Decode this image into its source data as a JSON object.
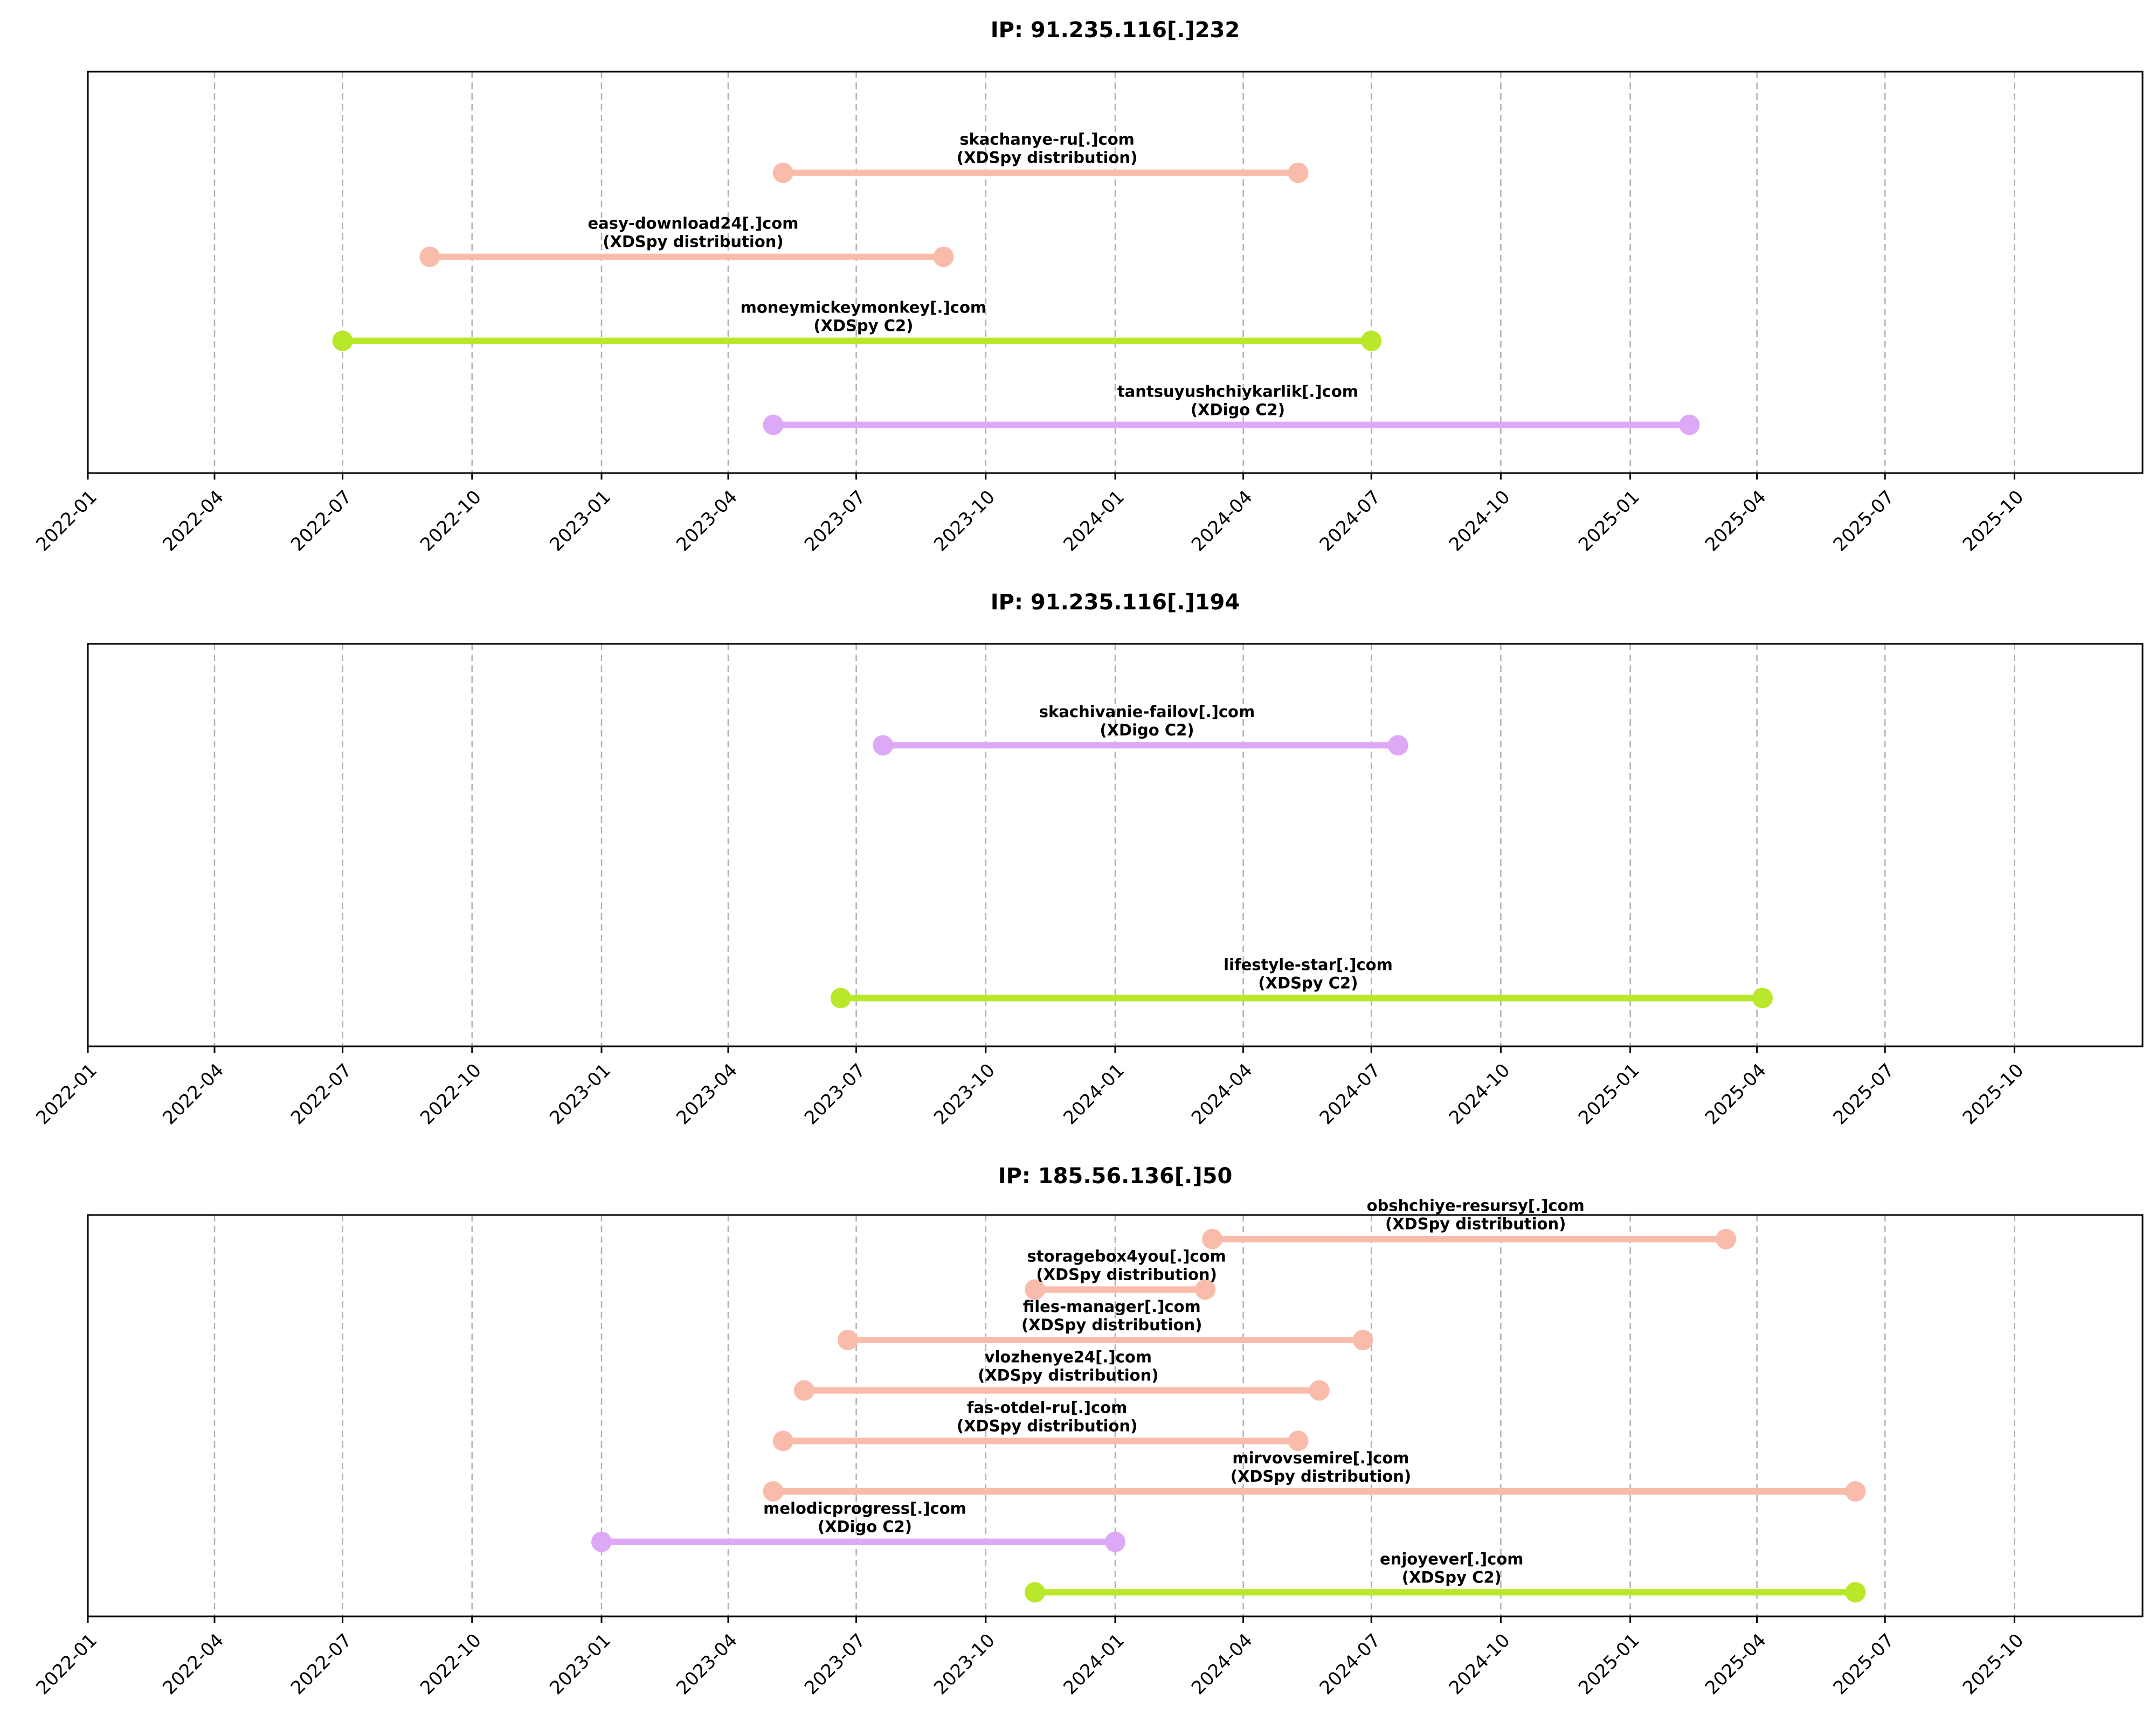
{
  "chart_data": [
    {
      "type": "timeline",
      "title": "IP: 91.235.116[.]232",
      "x_axis": {
        "type": "date",
        "range": [
          "2022-01-01",
          "2025-12-31"
        ],
        "grid": true
      },
      "ticks": [
        "2022-01",
        "2022-04",
        "2022-07",
        "2022-10",
        "2023-01",
        "2023-04",
        "2023-07",
        "2023-10",
        "2024-01",
        "2024-04",
        "2024-07",
        "2024-10",
        "2025-01",
        "2025-04",
        "2025-07",
        "2025-10"
      ],
      "series": [
        {
          "domain": "skachanye-ru[.]com",
          "category": "(XDSpy distribution)",
          "start": "2023-05-10",
          "end": "2024-05-10",
          "color": "#F9BCAA"
        },
        {
          "domain": "easy-download24[.]com",
          "category": "(XDSpy distribution)",
          "start": "2022-09-01",
          "end": "2023-09-01",
          "color": "#F9BCAA"
        },
        {
          "domain": "moneymickeymonkey[.]com",
          "category": "(XDSpy C2)",
          "start": "2022-07-01",
          "end": "2024-07-01",
          "color": "#B8E829"
        },
        {
          "domain": "tantsuyushchiykarlik[.]com",
          "category": "(XDigo C2)",
          "start": "2023-05-03",
          "end": "2025-02-12",
          "color": "#DDA9F7"
        }
      ]
    },
    {
      "type": "timeline",
      "title": "IP: 91.235.116[.]194",
      "x_axis": {
        "type": "date",
        "range": [
          "2022-01-01",
          "2025-12-31"
        ],
        "grid": true
      },
      "ticks": [
        "2022-01",
        "2022-04",
        "2022-07",
        "2022-10",
        "2023-01",
        "2023-04",
        "2023-07",
        "2023-10",
        "2024-01",
        "2024-04",
        "2024-07",
        "2024-10",
        "2025-01",
        "2025-04",
        "2025-07",
        "2025-10"
      ],
      "series": [
        {
          "domain": "skachivanie-failov[.]com",
          "category": "(XDigo C2)",
          "start": "2023-07-20",
          "end": "2024-07-20",
          "color": "#DDA9F7"
        },
        {
          "domain": "lifestyle-star[.]com",
          "category": "(XDSpy C2)",
          "start": "2023-06-20",
          "end": "2025-04-05",
          "color": "#B8E829"
        }
      ]
    },
    {
      "type": "timeline",
      "title": "IP: 185.56.136[.]50",
      "x_axis": {
        "type": "date",
        "range": [
          "2022-01-01",
          "2025-12-31"
        ],
        "grid": true
      },
      "ticks": [
        "2022-01",
        "2022-04",
        "2022-07",
        "2022-10",
        "2023-01",
        "2023-04",
        "2023-07",
        "2023-10",
        "2024-01",
        "2024-04",
        "2024-07",
        "2024-10",
        "2025-01",
        "2025-04",
        "2025-07",
        "2025-10"
      ],
      "series": [
        {
          "domain": "obshchiye-resursy[.]com",
          "category": "(XDSpy distribution)",
          "start": "2024-03-10",
          "end": "2025-03-10",
          "color": "#F9BCAA"
        },
        {
          "domain": "storagebox4you[.]com",
          "category": "(XDSpy distribution)",
          "start": "2023-11-05",
          "end": "2024-03-05",
          "color": "#F9BCAA"
        },
        {
          "domain": "files-manager[.]com",
          "category": "(XDSpy distribution)",
          "start": "2023-06-25",
          "end": "2024-06-25",
          "color": "#F9BCAA"
        },
        {
          "domain": "vlozhenye24[.]com",
          "category": "(XDSpy distribution)",
          "start": "2023-05-25",
          "end": "2024-05-25",
          "color": "#F9BCAA"
        },
        {
          "domain": "fas-otdel-ru[.]com",
          "category": "(XDSpy distribution)",
          "start": "2023-05-10",
          "end": "2024-05-10",
          "color": "#F9BCAA"
        },
        {
          "domain": "mirvovsemire[.]com",
          "category": "(XDSpy distribution)",
          "start": "2023-05-03",
          "end": "2025-06-10",
          "color": "#F9BCAA"
        },
        {
          "domain": "melodicprogress[.]com",
          "category": "(XDigo C2)",
          "start": "2023-01-01",
          "end": "2024-01-01",
          "color": "#DDA9F7"
        },
        {
          "domain": "enjoyever[.]com",
          "category": "(XDSpy C2)",
          "start": "2023-11-05",
          "end": "2025-06-10",
          "color": "#B8E829"
        }
      ]
    }
  ]
}
